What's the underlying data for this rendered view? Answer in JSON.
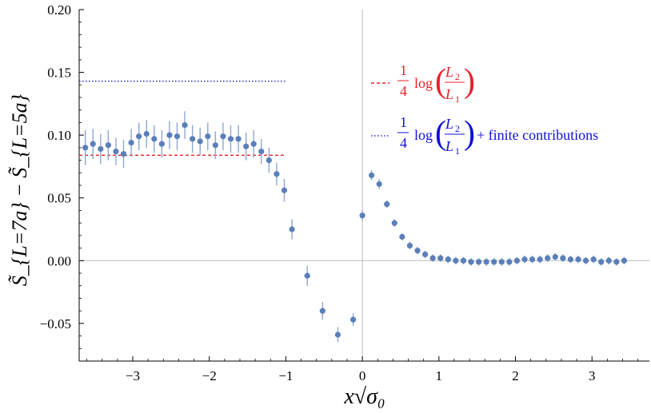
{
  "chart_data": {
    "type": "scatter",
    "xlabel": "x√σ₀",
    "ylabel": "S̃_{L=7a} − S̃_{L=5a}",
    "xlim": [
      -3.7,
      3.75
    ],
    "ylim": [
      -0.08,
      0.2
    ],
    "x_ticks": [
      "−3",
      "−2",
      "−1",
      "0",
      "1",
      "2",
      "3"
    ],
    "y_ticks": [
      "0.20",
      "0.15",
      "0.10",
      "0.05",
      "0.00",
      "−0.05"
    ],
    "colors": {
      "points": "#5b7fb9",
      "errorbars": "#8ea7d0",
      "red_line": "#e8202a",
      "blue_line": "#2a2ad0",
      "axis_lines": "#bbbbbb"
    },
    "reference_lines": [
      {
        "name": "1/4 log(L2/L1)",
        "y": 0.084,
        "x_range": [
          -3.7,
          -1.0
        ],
        "style": "dashed",
        "color": "#e8202a"
      },
      {
        "name": "1/4 log(L2/L1) + finite contributions",
        "y": 0.143,
        "x_range": [
          -3.7,
          -1.0
        ],
        "style": "dotted",
        "color": "#2a2ad0"
      }
    ],
    "legend": {
      "position": "right",
      "entries": [
        {
          "frac_num": "1",
          "frac_den": "4",
          "fn": "log",
          "num": "L",
          "num_sub": "2",
          "den": "L",
          "den_sub": "1",
          "suffix": ""
        },
        {
          "frac_num": "1",
          "frac_den": "4",
          "fn": "log",
          "num": "L",
          "num_sub": "2",
          "den": "L",
          "den_sub": "1",
          "suffix": "+ finite contributions"
        }
      ]
    },
    "series": [
      {
        "points": [
          {
            "x": -3.62,
            "y": 0.09,
            "err": 0.014
          },
          {
            "x": -3.52,
            "y": 0.093,
            "err": 0.012
          },
          {
            "x": -3.42,
            "y": 0.089,
            "err": 0.012
          },
          {
            "x": -3.32,
            "y": 0.092,
            "err": 0.012
          },
          {
            "x": -3.22,
            "y": 0.087,
            "err": 0.011
          },
          {
            "x": -3.12,
            "y": 0.085,
            "err": 0.011
          },
          {
            "x": -3.02,
            "y": 0.094,
            "err": 0.011
          },
          {
            "x": -2.92,
            "y": 0.099,
            "err": 0.011
          },
          {
            "x": -2.82,
            "y": 0.101,
            "err": 0.011
          },
          {
            "x": -2.72,
            "y": 0.097,
            "err": 0.011
          },
          {
            "x": -2.62,
            "y": 0.093,
            "err": 0.011
          },
          {
            "x": -2.52,
            "y": 0.1,
            "err": 0.011
          },
          {
            "x": -2.42,
            "y": 0.099,
            "err": 0.011
          },
          {
            "x": -2.32,
            "y": 0.108,
            "err": 0.011
          },
          {
            "x": -2.22,
            "y": 0.097,
            "err": 0.011
          },
          {
            "x": -2.12,
            "y": 0.095,
            "err": 0.011
          },
          {
            "x": -2.02,
            "y": 0.099,
            "err": 0.011
          },
          {
            "x": -1.92,
            "y": 0.092,
            "err": 0.011
          },
          {
            "x": -1.82,
            "y": 0.099,
            "err": 0.011
          },
          {
            "x": -1.72,
            "y": 0.097,
            "err": 0.011
          },
          {
            "x": -1.62,
            "y": 0.097,
            "err": 0.011
          },
          {
            "x": -1.52,
            "y": 0.091,
            "err": 0.011
          },
          {
            "x": -1.42,
            "y": 0.093,
            "err": 0.011
          },
          {
            "x": -1.32,
            "y": 0.087,
            "err": 0.01
          },
          {
            "x": -1.22,
            "y": 0.08,
            "err": 0.01
          },
          {
            "x": -1.12,
            "y": 0.069,
            "err": 0.009
          },
          {
            "x": -1.02,
            "y": 0.056,
            "err": 0.009
          },
          {
            "x": -0.92,
            "y": 0.025,
            "err": 0.008
          },
          {
            "x": -0.72,
            "y": -0.012,
            "err": 0.008
          },
          {
            "x": -0.52,
            "y": -0.04,
            "err": 0.007
          },
          {
            "x": -0.32,
            "y": -0.059,
            "err": 0.006
          },
          {
            "x": -0.12,
            "y": -0.047,
            "err": 0.005
          },
          {
            "x": 0.0,
            "y": 0.036,
            "err": 0.004
          },
          {
            "x": 0.12,
            "y": 0.068,
            "err": 0.004
          },
          {
            "x": 0.22,
            "y": 0.061,
            "err": 0.004
          },
          {
            "x": 0.32,
            "y": 0.045,
            "err": 0.003
          },
          {
            "x": 0.42,
            "y": 0.03,
            "err": 0.003
          },
          {
            "x": 0.52,
            "y": 0.019,
            "err": 0.003
          },
          {
            "x": 0.62,
            "y": 0.012,
            "err": 0.003
          },
          {
            "x": 0.72,
            "y": 0.008,
            "err": 0.003
          },
          {
            "x": 0.82,
            "y": 0.005,
            "err": 0.003
          },
          {
            "x": 0.92,
            "y": 0.002,
            "err": 0.003
          },
          {
            "x": 1.02,
            "y": 0.002,
            "err": 0.003
          },
          {
            "x": 1.12,
            "y": 0.001,
            "err": 0.003
          },
          {
            "x": 1.22,
            "y": 0.0,
            "err": 0.003
          },
          {
            "x": 1.32,
            "y": 0.0,
            "err": 0.003
          },
          {
            "x": 1.42,
            "y": -0.001,
            "err": 0.003
          },
          {
            "x": 1.52,
            "y": -0.001,
            "err": 0.003
          },
          {
            "x": 1.62,
            "y": -0.001,
            "err": 0.003
          },
          {
            "x": 1.72,
            "y": -0.001,
            "err": 0.003
          },
          {
            "x": 1.82,
            "y": -0.001,
            "err": 0.003
          },
          {
            "x": 1.92,
            "y": -0.001,
            "err": 0.003
          },
          {
            "x": 2.02,
            "y": 0.0,
            "err": 0.003
          },
          {
            "x": 2.12,
            "y": 0.001,
            "err": 0.003
          },
          {
            "x": 2.22,
            "y": 0.001,
            "err": 0.003
          },
          {
            "x": 2.32,
            "y": 0.001,
            "err": 0.003
          },
          {
            "x": 2.42,
            "y": 0.002,
            "err": 0.003
          },
          {
            "x": 2.52,
            "y": 0.003,
            "err": 0.003
          },
          {
            "x": 2.62,
            "y": 0.002,
            "err": 0.003
          },
          {
            "x": 2.72,
            "y": 0.001,
            "err": 0.003
          },
          {
            "x": 2.82,
            "y": 0.001,
            "err": 0.003
          },
          {
            "x": 2.92,
            "y": 0.0,
            "err": 0.003
          },
          {
            "x": 3.02,
            "y": 0.001,
            "err": 0.003
          },
          {
            "x": 3.12,
            "y": -0.001,
            "err": 0.003
          },
          {
            "x": 3.22,
            "y": 0.0,
            "err": 0.003
          },
          {
            "x": 3.32,
            "y": -0.001,
            "err": 0.003
          },
          {
            "x": 3.42,
            "y": 0.0,
            "err": 0.003
          }
        ]
      }
    ]
  }
}
